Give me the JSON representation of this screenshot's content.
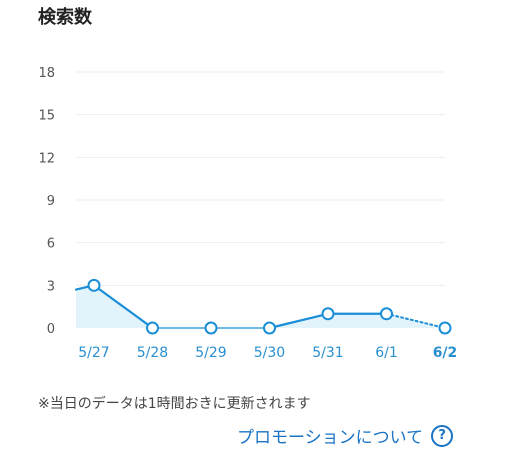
{
  "header": {
    "title": "検索数"
  },
  "chart_data": {
    "type": "line",
    "x": [
      "5/27",
      "5/28",
      "5/29",
      "5/30",
      "5/31",
      "6/1",
      "6/2"
    ],
    "series": [
      {
        "values": [
          3,
          0,
          0,
          0,
          1,
          1,
          0
        ],
        "incoming_value": 2.7
      }
    ],
    "ylim": [
      0,
      18
    ],
    "yticks": [
      0,
      3,
      6,
      9,
      12,
      15,
      18
    ],
    "grid": true,
    "highlight_last_label": true,
    "last_segment_style": "dotted",
    "colors": {
      "line": "#1a8fd8",
      "fill": "#e3f3fc",
      "grid": "#eeeeee",
      "axis_text": "#555555",
      "x_label": "#2a8fd0"
    }
  },
  "footer": {
    "note": "※当日のデータは1時間おきに更新されます",
    "promo_link": "プロモーションについて",
    "help_icon": "?"
  }
}
